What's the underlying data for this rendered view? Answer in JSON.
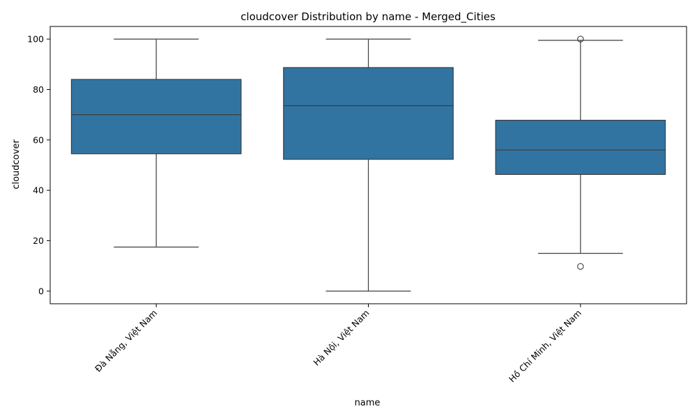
{
  "chart_data": {
    "type": "box",
    "title": "cloudcover Distribution by name - Merged_Cities",
    "xlabel": "name",
    "ylabel": "cloudcover",
    "ylim": [
      -5,
      105
    ],
    "yticks": [
      0,
      20,
      40,
      60,
      80,
      100
    ],
    "grid": false,
    "box_color": "#3274a1",
    "line_color": "#3d3d3d",
    "categories": [
      "Đà Nẵng, Việt Nam",
      "Hà Nội, Việt Nam",
      "Hồ Chí Minh, Việt Nam"
    ],
    "boxes": [
      {
        "category": "Đà Nẵng, Việt Nam",
        "whisker_low": 17.5,
        "q1": 54.5,
        "median": 70,
        "q3": 84,
        "whisker_high": 100,
        "outliers": []
      },
      {
        "category": "Hà Nội, Việt Nam",
        "whisker_low": 0,
        "q1": 52.3,
        "median": 73.6,
        "q3": 88.7,
        "whisker_high": 100,
        "outliers": []
      },
      {
        "category": "Hồ Chí Minh, Việt Nam",
        "whisker_low": 15,
        "q1": 46.3,
        "median": 56,
        "q3": 67.8,
        "whisker_high": 99.5,
        "outliers": [
          100,
          9.8
        ]
      }
    ]
  }
}
